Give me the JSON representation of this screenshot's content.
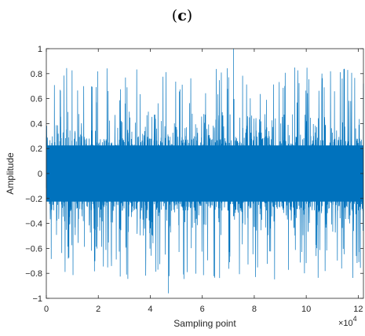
{
  "panel_label_letter": "c",
  "chart_data": {
    "type": "line",
    "title": "",
    "xlabel": "Sampling point",
    "ylabel": "Amplitude",
    "xlim": [
      0,
      122000
    ],
    "ylim": [
      -1,
      1
    ],
    "x_exponent_label": "×10",
    "x_exponent_power": "4",
    "x_ticks": [
      0,
      20000,
      40000,
      60000,
      80000,
      100000,
      120000
    ],
    "x_tick_labels": [
      "0",
      "2",
      "4",
      "6",
      "8",
      "10",
      "12"
    ],
    "y_ticks": [
      -1,
      -0.8,
      -0.6,
      -0.4,
      -0.2,
      0,
      0.2,
      0.4,
      0.6,
      0.8,
      1
    ],
    "y_tick_labels": [
      "−1",
      "−0.8",
      "−0.6",
      "−0.4",
      "−0.2",
      "0",
      "0.2",
      "0.4",
      "0.6",
      "0.8",
      "1"
    ],
    "grid": false,
    "series": [
      {
        "color": "#0072BD",
        "num_samples": 122000,
        "dense_band": [
          -0.3,
          0.3
        ],
        "peak_max": 1.0,
        "peak_max_at": 72000,
        "peak_min": -0.96,
        "peak_min_at": 47000,
        "typical_peak_range": [
          0.55,
          0.85
        ]
      }
    ]
  }
}
